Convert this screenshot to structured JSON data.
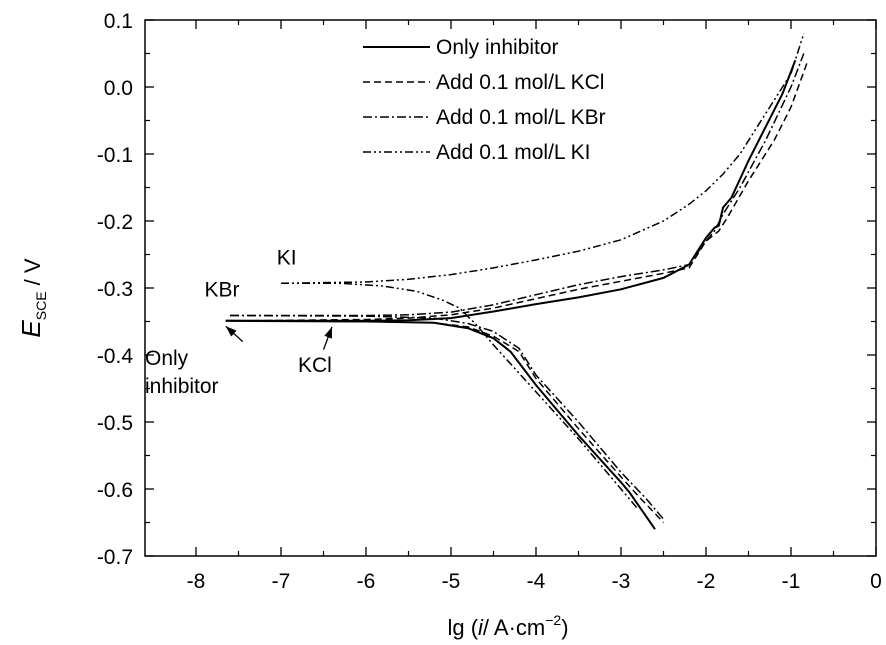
{
  "chart_data": {
    "type": "line",
    "xlabel_main": "lg (",
    "xlabel_unit": "/ A·cm",
    "xlabel_sup": "−2",
    "xlabel_close": ")",
    "xlabel_i": "i",
    "ylabel_E": "E",
    "ylabel_sub": "SCE",
    "ylabel_unit": " / V",
    "xlim": [
      -8.6,
      0
    ],
    "ylim": [
      -0.7,
      0.1
    ],
    "xticks": [
      -8,
      -7,
      -6,
      -5,
      -4,
      -3,
      -2,
      -1,
      0
    ],
    "xtick_labels": [
      "-8",
      "-7",
      "-6",
      "-5",
      "-4",
      "-3",
      "-2",
      "-1",
      "0"
    ],
    "yticks": [
      0.1,
      0.0,
      -0.1,
      -0.2,
      -0.3,
      -0.4,
      -0.5,
      -0.6,
      -0.7
    ],
    "ytick_labels": [
      "0.1",
      "0.0",
      "-0.1",
      "-0.2",
      "-0.3",
      "-0.4",
      "-0.5",
      "-0.6",
      "-0.7"
    ],
    "grid": false,
    "legend_position": "top-right",
    "series": [
      {
        "name": "Only inhibitor",
        "style": "solid",
        "anodic": [
          [
            -7.65,
            -0.349
          ],
          [
            -7.0,
            -0.349
          ],
          [
            -6.0,
            -0.349
          ],
          [
            -5.5,
            -0.348
          ],
          [
            -5.0,
            -0.345
          ],
          [
            -4.5,
            -0.335
          ],
          [
            -4.0,
            -0.324
          ],
          [
            -3.5,
            -0.314
          ],
          [
            -3.0,
            -0.302
          ],
          [
            -2.5,
            -0.285
          ],
          [
            -2.2,
            -0.265
          ],
          [
            -2.0,
            -0.225
          ],
          [
            -1.9,
            -0.21
          ],
          [
            -1.85,
            -0.207
          ],
          [
            -1.8,
            -0.18
          ],
          [
            -1.7,
            -0.165
          ],
          [
            -1.5,
            -0.11
          ],
          [
            -1.3,
            -0.06
          ],
          [
            -1.1,
            -0.01
          ],
          [
            -0.95,
            0.04
          ]
        ],
        "cathodic": [
          [
            -7.65,
            -0.349
          ],
          [
            -6.0,
            -0.35
          ],
          [
            -5.2,
            -0.352
          ],
          [
            -4.8,
            -0.36
          ],
          [
            -4.5,
            -0.375
          ],
          [
            -4.3,
            -0.395
          ],
          [
            -4.0,
            -0.445
          ],
          [
            -3.5,
            -0.52
          ],
          [
            -3.0,
            -0.59
          ],
          [
            -2.9,
            -0.605
          ],
          [
            -2.6,
            -0.66
          ]
        ]
      },
      {
        "name": "Add 0.1 mol/L KCl",
        "style": "dashed",
        "anodic": [
          [
            -7.45,
            -0.349
          ],
          [
            -6.0,
            -0.347
          ],
          [
            -5.5,
            -0.345
          ],
          [
            -5.0,
            -0.34
          ],
          [
            -4.5,
            -0.33
          ],
          [
            -4.0,
            -0.316
          ],
          [
            -3.5,
            -0.302
          ],
          [
            -3.0,
            -0.29
          ],
          [
            -2.5,
            -0.278
          ],
          [
            -2.2,
            -0.27
          ],
          [
            -2.0,
            -0.23
          ],
          [
            -1.85,
            -0.215
          ],
          [
            -1.75,
            -0.195
          ],
          [
            -1.5,
            -0.14
          ],
          [
            -1.2,
            -0.08
          ],
          [
            -1.0,
            -0.03
          ],
          [
            -0.8,
            0.04
          ]
        ],
        "cathodic": [
          [
            -7.45,
            -0.349
          ],
          [
            -6.0,
            -0.35
          ],
          [
            -5.2,
            -0.352
          ],
          [
            -4.8,
            -0.358
          ],
          [
            -4.5,
            -0.372
          ],
          [
            -4.2,
            -0.395
          ],
          [
            -4.0,
            -0.435
          ],
          [
            -3.5,
            -0.51
          ],
          [
            -3.0,
            -0.582
          ],
          [
            -2.8,
            -0.61
          ],
          [
            -2.5,
            -0.65
          ]
        ]
      },
      {
        "name": "Add 0.1 mol/L KBr",
        "style": "dashdot",
        "anodic": [
          [
            -7.6,
            -0.341
          ],
          [
            -7.0,
            -0.341
          ],
          [
            -6.0,
            -0.341
          ],
          [
            -5.5,
            -0.34
          ],
          [
            -5.0,
            -0.336
          ],
          [
            -4.5,
            -0.325
          ],
          [
            -4.0,
            -0.31
          ],
          [
            -3.5,
            -0.295
          ],
          [
            -3.0,
            -0.283
          ],
          [
            -2.5,
            -0.273
          ],
          [
            -2.2,
            -0.265
          ],
          [
            -2.0,
            -0.23
          ],
          [
            -1.9,
            -0.215
          ],
          [
            -1.8,
            -0.19
          ],
          [
            -1.6,
            -0.15
          ],
          [
            -1.3,
            -0.08
          ],
          [
            -1.0,
            0.0
          ],
          [
            -0.85,
            0.05
          ]
        ],
        "cathodic": [
          [
            -7.6,
            -0.341
          ],
          [
            -6.0,
            -0.342
          ],
          [
            -5.2,
            -0.345
          ],
          [
            -4.8,
            -0.353
          ],
          [
            -4.5,
            -0.365
          ],
          [
            -4.2,
            -0.39
          ],
          [
            -4.0,
            -0.43
          ],
          [
            -3.5,
            -0.5
          ],
          [
            -3.0,
            -0.575
          ],
          [
            -2.7,
            -0.615
          ],
          [
            -2.5,
            -0.645
          ]
        ]
      },
      {
        "name": "Add 0.1 mol/L KI",
        "style": "dashdotdot",
        "anodic": [
          [
            -7.0,
            -0.293
          ],
          [
            -6.5,
            -0.292
          ],
          [
            -6.0,
            -0.291
          ],
          [
            -5.5,
            -0.287
          ],
          [
            -5.0,
            -0.28
          ],
          [
            -4.5,
            -0.27
          ],
          [
            -4.0,
            -0.258
          ],
          [
            -3.5,
            -0.245
          ],
          [
            -3.0,
            -0.228
          ],
          [
            -2.5,
            -0.2
          ],
          [
            -2.2,
            -0.175
          ],
          [
            -2.0,
            -0.155
          ],
          [
            -1.8,
            -0.13
          ],
          [
            -1.6,
            -0.1
          ],
          [
            -1.3,
            -0.04
          ],
          [
            -1.0,
            0.02
          ],
          [
            -0.85,
            0.08
          ]
        ],
        "cathodic": [
          [
            -7.0,
            -0.293
          ],
          [
            -6.3,
            -0.293
          ],
          [
            -5.8,
            -0.297
          ],
          [
            -5.4,
            -0.305
          ],
          [
            -5.1,
            -0.318
          ],
          [
            -4.9,
            -0.33
          ],
          [
            -4.7,
            -0.355
          ],
          [
            -4.5,
            -0.385
          ],
          [
            -4.0,
            -0.455
          ],
          [
            -3.5,
            -0.525
          ],
          [
            -3.0,
            -0.6
          ],
          [
            -2.8,
            -0.63
          ]
        ]
      }
    ],
    "annotations": [
      {
        "lines": [
          "KI"
        ],
        "x": -7.05,
        "y": -0.265
      },
      {
        "lines": [
          "KBr"
        ],
        "x": -7.9,
        "y": -0.313
      },
      {
        "lines": [
          "KCl"
        ],
        "x": -6.8,
        "y": -0.425
      },
      {
        "lines": [
          "Only",
          "inhibitor"
        ],
        "x": -8.6,
        "y": -0.415
      }
    ],
    "arrows": [
      {
        "from": [
          -7.45,
          -0.38
        ],
        "to": [
          -7.65,
          -0.357
        ]
      },
      {
        "from": [
          -6.5,
          -0.392
        ],
        "to": [
          -6.4,
          -0.358
        ]
      }
    ]
  }
}
